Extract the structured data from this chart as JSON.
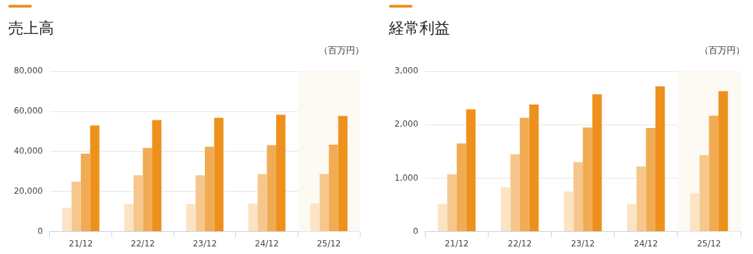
{
  "chart_data": [
    {
      "type": "bar",
      "title": "売上高",
      "ylabel": "（百万円）",
      "categories": [
        "21/12",
        "22/12",
        "23/12",
        "24/12",
        "25/12"
      ],
      "series": [
        {
          "color": "#fbe3c4",
          "values": [
            11900,
            13700,
            13700,
            14000,
            14000
          ]
        },
        {
          "color": "#f6c78c",
          "values": [
            24900,
            28100,
            28100,
            28700,
            28700
          ]
        },
        {
          "color": "#f1ab52",
          "values": [
            38900,
            41800,
            42400,
            43200,
            43400
          ]
        },
        {
          "color": "#ee911c",
          "values": [
            53000,
            55700,
            56800,
            58400,
            57800
          ]
        }
      ],
      "ylim": [
        0,
        80000
      ],
      "yticks": [
        0,
        {
          "value": 20000,
          "label": "20,000"
        },
        {
          "value": 40000,
          "label": "40,000"
        },
        {
          "value": 60000,
          "label": "60,000"
        },
        {
          "value": 80000,
          "label": "80,000"
        }
      ],
      "grid": "y",
      "legend": false,
      "bands": [
        {
          "axis": "x",
          "from": "25/12",
          "to": "25/12",
          "color": "#fdf9f3"
        }
      ]
    },
    {
      "type": "bar",
      "title": "経常利益",
      "ylabel": "（百万円）",
      "categories": [
        "21/12",
        "22/12",
        "23/12",
        "24/12",
        "25/12"
      ],
      "series": [
        {
          "color": "#fbe3c4",
          "values": [
            520,
            830,
            750,
            520,
            710
          ]
        },
        {
          "color": "#f6c78c",
          "values": [
            1070,
            1450,
            1300,
            1220,
            1430
          ]
        },
        {
          "color": "#f1ab52",
          "values": [
            1650,
            2130,
            1950,
            1940,
            2170
          ]
        },
        {
          "color": "#ee911c",
          "values": [
            2290,
            2380,
            2570,
            2720,
            2630
          ]
        }
      ],
      "ylim": [
        0,
        3000
      ],
      "yticks": [
        0,
        {
          "value": 1000,
          "label": "1,000"
        },
        {
          "value": 2000,
          "label": "2,000"
        },
        {
          "value": 3000,
          "label": "3,000"
        }
      ],
      "grid": "y",
      "legend": false,
      "bands": [
        {
          "axis": "x",
          "from": "25/12",
          "to": "25/12",
          "color": "#fdf9f3"
        }
      ]
    }
  ]
}
